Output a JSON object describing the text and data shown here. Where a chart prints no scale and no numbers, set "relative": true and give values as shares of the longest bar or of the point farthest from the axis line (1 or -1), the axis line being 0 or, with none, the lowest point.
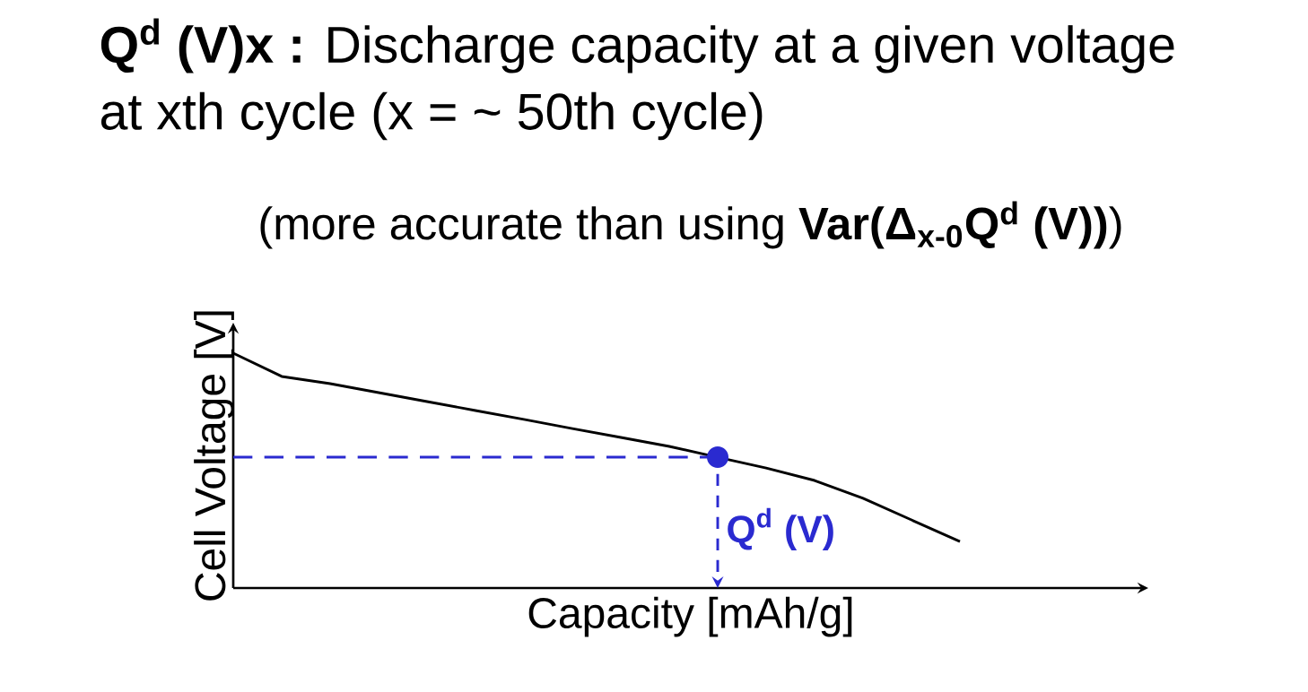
{
  "chart_data": {
    "type": "line",
    "relative": true,
    "title": "**Q$^{d}$ (V)x :** Discharge capacity at a given voltage at xth cycle (x = ~ 50th cycle)",
    "subtitle": "(more accurate than using **Var(Δ$_{x-0}$Q$^{d}$ (V))**)",
    "xlabel": "Capacity [mAh/g]",
    "ylabel": "Cell Voltage [V]",
    "categories": [
      null,
      null,
      null,
      null,
      null,
      null,
      null,
      null,
      null,
      null,
      null,
      null,
      null,
      null,
      null,
      null
    ],
    "series": [
      {
        "color": "#000000",
        "values": [
          1,
          0.901,
          0.87,
          0.832,
          0.794,
          0.756,
          0.718,
          0.679,
          0.641,
          0.603,
          0.557,
          0.511,
          0.458,
          0.382,
          0.29,
          0.198
        ]
      }
    ],
    "ref_lines": [
      {
        "axis": "y",
        "value": 0.557,
        "color": "#2a2ad0",
        "line_style": "dashed"
      }
    ],
    "annotations": [
      "**Q$^{d}$ (V)**"
    ]
  }
}
